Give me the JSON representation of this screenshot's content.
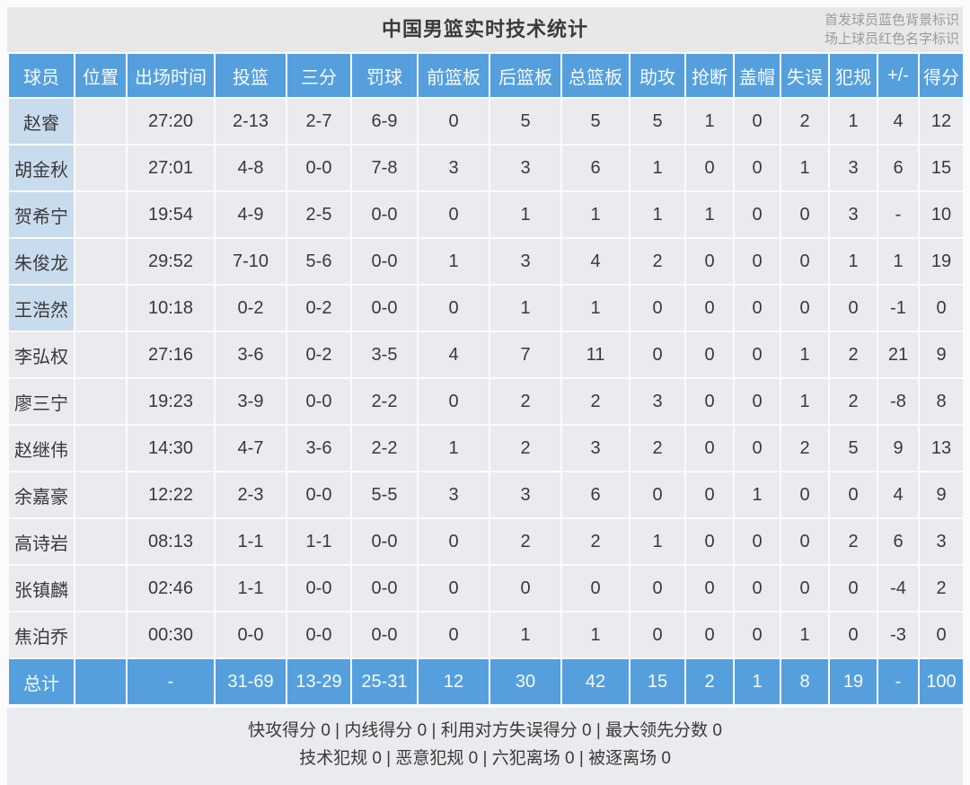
{
  "title": "中国男篮实时技术统计",
  "legend": {
    "line1": "首发球员蓝色背景标识",
    "line2": "场上球员红色名字标识"
  },
  "colors": {
    "header_blue": "#55a0dc",
    "starter_bg": "#c9dcee",
    "row_bg": "#e9ebee",
    "titlebar_bg": "#e7e8ea",
    "total_sep": "#85b9e4"
  },
  "table": {
    "columns": [
      "球员",
      "位置",
      "出场时间",
      "投篮",
      "三分",
      "罚球",
      "前篮板",
      "后篮板",
      "总篮板",
      "助攻",
      "抢断",
      "盖帽",
      "失误",
      "犯规",
      "+/-",
      "得分"
    ],
    "rows": [
      {
        "name": "赵睿",
        "position": "",
        "starter": true,
        "values": [
          "27:20",
          "2-13",
          "2-7",
          "6-9",
          "0",
          "5",
          "5",
          "5",
          "1",
          "0",
          "2",
          "1",
          "4",
          "12"
        ]
      },
      {
        "name": "胡金秋",
        "position": "",
        "starter": true,
        "values": [
          "27:01",
          "4-8",
          "0-0",
          "7-8",
          "3",
          "3",
          "6",
          "1",
          "0",
          "0",
          "1",
          "3",
          "6",
          "15"
        ]
      },
      {
        "name": "贺希宁",
        "position": "",
        "starter": true,
        "values": [
          "19:54",
          "4-9",
          "2-5",
          "0-0",
          "0",
          "1",
          "1",
          "1",
          "1",
          "0",
          "0",
          "3",
          "-",
          "10"
        ]
      },
      {
        "name": "朱俊龙",
        "position": "",
        "starter": true,
        "values": [
          "29:52",
          "7-10",
          "5-6",
          "0-0",
          "1",
          "3",
          "4",
          "2",
          "0",
          "0",
          "0",
          "1",
          "1",
          "19"
        ]
      },
      {
        "name": "王浩然",
        "position": "",
        "starter": true,
        "values": [
          "10:18",
          "0-2",
          "0-2",
          "0-0",
          "0",
          "1",
          "1",
          "0",
          "0",
          "0",
          "0",
          "0",
          "-1",
          "0"
        ]
      },
      {
        "name": "李弘权",
        "position": "",
        "starter": false,
        "values": [
          "27:16",
          "3-6",
          "0-2",
          "3-5",
          "4",
          "7",
          "11",
          "0",
          "0",
          "0",
          "1",
          "2",
          "21",
          "9"
        ]
      },
      {
        "name": "廖三宁",
        "position": "",
        "starter": false,
        "values": [
          "19:23",
          "3-9",
          "0-0",
          "2-2",
          "0",
          "2",
          "2",
          "3",
          "0",
          "0",
          "1",
          "2",
          "-8",
          "8"
        ]
      },
      {
        "name": "赵继伟",
        "position": "",
        "starter": false,
        "values": [
          "14:30",
          "4-7",
          "3-6",
          "2-2",
          "1",
          "2",
          "3",
          "2",
          "0",
          "0",
          "2",
          "5",
          "9",
          "13"
        ]
      },
      {
        "name": "余嘉豪",
        "position": "",
        "starter": false,
        "values": [
          "12:22",
          "2-3",
          "0-0",
          "5-5",
          "3",
          "3",
          "6",
          "0",
          "0",
          "1",
          "0",
          "0",
          "4",
          "9"
        ]
      },
      {
        "name": "高诗岩",
        "position": "",
        "starter": false,
        "values": [
          "08:13",
          "1-1",
          "1-1",
          "0-0",
          "0",
          "2",
          "2",
          "1",
          "0",
          "0",
          "0",
          "2",
          "6",
          "3"
        ]
      },
      {
        "name": "张镇麟",
        "position": "",
        "starter": false,
        "values": [
          "02:46",
          "1-1",
          "0-0",
          "0-0",
          "0",
          "0",
          "0",
          "0",
          "0",
          "0",
          "0",
          "0",
          "-4",
          "2"
        ]
      },
      {
        "name": "焦泊乔",
        "position": "",
        "starter": false,
        "values": [
          "00:30",
          "0-0",
          "0-0",
          "0-0",
          "0",
          "1",
          "1",
          "0",
          "0",
          "0",
          "1",
          "0",
          "-3",
          "0"
        ]
      }
    ],
    "totals": {
      "label": "总计",
      "position": "",
      "values": [
        "-",
        "31-69",
        "13-29",
        "25-31",
        "12",
        "30",
        "42",
        "15",
        "2",
        "1",
        "8",
        "19",
        "-",
        "100"
      ]
    }
  },
  "footer": {
    "line1": "快攻得分 0 | 内线得分 0 | 利用对方失误得分 0 | 最大领先分数 0",
    "line2": "技术犯规 0 | 恶意犯规 0 | 六犯离场 0 | 被逐离场 0"
  }
}
